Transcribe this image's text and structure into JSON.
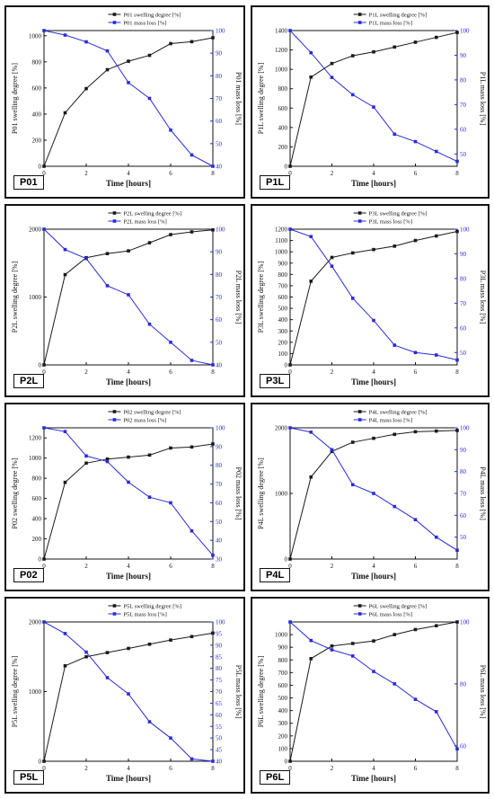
{
  "chart_data": [
    {
      "type": "line",
      "panel_label": "P01",
      "xlabel": "Time [hours]",
      "ylabel_left": "P01 swelling degree [%]",
      "ylabel_right": "P01 mass loss [%]",
      "x": [
        0,
        1,
        2,
        3,
        4,
        5,
        6,
        7,
        8
      ],
      "xlim": [
        0,
        8
      ],
      "xticks": [
        0,
        2,
        4,
        6,
        8
      ],
      "ylim_left": [
        0,
        1040
      ],
      "yticks_left": [
        0,
        200,
        400,
        600,
        800,
        1000
      ],
      "ylim_right": [
        40,
        100
      ],
      "yticks_right": [
        40,
        50,
        60,
        70,
        80,
        90,
        100
      ],
      "legend_position": "top-center",
      "series": [
        {
          "name": "P01 swelling degree [%]",
          "axis": "left",
          "color": "#1a1a1a",
          "marker": "square",
          "values": [
            0,
            410,
            595,
            740,
            805,
            850,
            940,
            955,
            985
          ]
        },
        {
          "name": "P01 mass loss [%]",
          "axis": "right",
          "color": "#2b2bd9",
          "marker": "square",
          "values": [
            100,
            98,
            95,
            91,
            77,
            70,
            56,
            45,
            40
          ]
        }
      ]
    },
    {
      "type": "line",
      "panel_label": "P1L",
      "xlabel": "Time [hours]",
      "ylabel_left": "P1L swelling degree [%]",
      "ylabel_right": "P1L mass loss [%]",
      "x": [
        0,
        1,
        2,
        3,
        4,
        5,
        6,
        7,
        8
      ],
      "xlim": [
        0,
        8
      ],
      "xticks": [
        0,
        2,
        4,
        6,
        8
      ],
      "ylim_left": [
        0,
        1400
      ],
      "yticks_left": [
        0,
        200,
        400,
        600,
        800,
        1000,
        1200,
        1400
      ],
      "ylim_right": [
        45,
        100
      ],
      "yticks_right": [
        50,
        60,
        70,
        80,
        90,
        100
      ],
      "legend_position": "top-center",
      "series": [
        {
          "name": "P1L swelling degree [%]",
          "axis": "left",
          "color": "#1a1a1a",
          "marker": "square",
          "values": [
            0,
            920,
            1060,
            1140,
            1180,
            1230,
            1280,
            1330,
            1380
          ]
        },
        {
          "name": "P1L mass loss [%]",
          "axis": "right",
          "color": "#2b2bd9",
          "marker": "square",
          "values": [
            100,
            91,
            81,
            74,
            69,
            58,
            55,
            51,
            47
          ]
        }
      ]
    },
    {
      "type": "line",
      "panel_label": "P2L",
      "xlabel": "Time [hours]",
      "ylabel_left": "P2L swelling degree [%]",
      "ylabel_right": "P2L mass loss [%]",
      "x": [
        0,
        1,
        2,
        3,
        4,
        5,
        6,
        7,
        8
      ],
      "xlim": [
        0,
        8
      ],
      "xticks": [
        0,
        2,
        4,
        6,
        8
      ],
      "ylim_left": [
        0,
        2000
      ],
      "yticks_left": [
        0,
        1000,
        2000
      ],
      "ylim_right": [
        40,
        100
      ],
      "yticks_right": [
        40,
        50,
        60,
        70,
        80,
        90,
        100
      ],
      "legend_position": "top-center",
      "series": [
        {
          "name": "P2L swelling degree [%]",
          "axis": "left",
          "color": "#1a1a1a",
          "marker": "square",
          "values": [
            0,
            1330,
            1580,
            1640,
            1680,
            1800,
            1920,
            1960,
            1990
          ]
        },
        {
          "name": "P2L mass loss [%]",
          "axis": "right",
          "color": "#2b2bd9",
          "marker": "square",
          "values": [
            100,
            91,
            87,
            75,
            71,
            58,
            50,
            42,
            40
          ]
        }
      ]
    },
    {
      "type": "line",
      "panel_label": "P3L",
      "xlabel": "Time [hours]",
      "ylabel_left": "P3L swelling degree [%]",
      "ylabel_right": "P3L mass loss [%]",
      "x": [
        0,
        1,
        2,
        3,
        4,
        5,
        6,
        7,
        8
      ],
      "xlim": [
        0,
        8
      ],
      "xticks": [
        0,
        2,
        4,
        6,
        8
      ],
      "ylim_left": [
        0,
        1200
      ],
      "yticks_left": [
        0,
        100,
        200,
        300,
        400,
        500,
        600,
        700,
        800,
        900,
        1000,
        1100,
        1200
      ],
      "ylim_right": [
        45,
        100
      ],
      "yticks_right": [
        50,
        60,
        70,
        80,
        90,
        100
      ],
      "legend_position": "top-center",
      "series": [
        {
          "name": "P3L swelling degree [%]",
          "axis": "left",
          "color": "#1a1a1a",
          "marker": "square",
          "values": [
            0,
            740,
            950,
            990,
            1020,
            1050,
            1100,
            1140,
            1180
          ]
        },
        {
          "name": "P3L mass loss [%]",
          "axis": "right",
          "color": "#2b2bd9",
          "marker": "square",
          "values": [
            100,
            97,
            85,
            72,
            63,
            53,
            50,
            49,
            47
          ]
        }
      ]
    },
    {
      "type": "line",
      "panel_label": "P02",
      "xlabel": "Time [hours]",
      "ylabel_left": "P02 swelling degree [%]",
      "ylabel_right": "P02 mass loss [%]",
      "x": [
        0,
        1,
        2,
        3,
        4,
        5,
        6,
        7,
        8
      ],
      "xlim": [
        0,
        8
      ],
      "xticks": [
        0,
        2,
        4,
        6,
        8
      ],
      "ylim_left": [
        0,
        1300
      ],
      "yticks_left": [
        0,
        200,
        400,
        600,
        800,
        1000,
        1200
      ],
      "ylim_right": [
        30,
        100
      ],
      "yticks_right": [
        30,
        40,
        50,
        60,
        70,
        80,
        90,
        100
      ],
      "legend_position": "top-center",
      "series": [
        {
          "name": "P02 swelling degree [%]",
          "axis": "left",
          "color": "#1a1a1a",
          "marker": "square",
          "values": [
            0,
            760,
            950,
            990,
            1010,
            1030,
            1100,
            1110,
            1140
          ]
        },
        {
          "name": "P02 mass loss [%]",
          "axis": "right",
          "color": "#2b2bd9",
          "marker": "square",
          "values": [
            100,
            98,
            85,
            82,
            71,
            63,
            60,
            45,
            32
          ]
        }
      ]
    },
    {
      "type": "line",
      "panel_label": "P4L",
      "xlabel": "Time [hours]",
      "ylabel_left": "P4L swelling degree [%]",
      "ylabel_right": "P4L mass loss [%]",
      "x": [
        0,
        1,
        2,
        3,
        4,
        5,
        6,
        7,
        8
      ],
      "xlim": [
        0,
        8
      ],
      "xticks": [
        0,
        2,
        4,
        6,
        8
      ],
      "ylim_left": [
        0,
        2000
      ],
      "yticks_left": [
        0,
        1000,
        2000
      ],
      "ylim_right": [
        40,
        100
      ],
      "yticks_right": [
        50,
        60,
        70,
        80,
        90,
        100
      ],
      "legend_position": "top-center",
      "series": [
        {
          "name": "P4L swelling degree [%]",
          "axis": "left",
          "color": "#1a1a1a",
          "marker": "square",
          "values": [
            0,
            1250,
            1640,
            1780,
            1840,
            1900,
            1940,
            1950,
            1960
          ]
        },
        {
          "name": "P4L mass loss [%]",
          "axis": "right",
          "color": "#2b2bd9",
          "marker": "square",
          "values": [
            100,
            98,
            90,
            74,
            70,
            64,
            58,
            50,
            44
          ]
        }
      ]
    },
    {
      "type": "line",
      "panel_label": "P5L",
      "xlabel": "Time [hours]",
      "ylabel_left": "P5L swelling degree [%]",
      "ylabel_right": "P5L mass loss [%]",
      "x": [
        0,
        1,
        2,
        3,
        4,
        5,
        6,
        7,
        8
      ],
      "xlim": [
        0,
        8
      ],
      "xticks": [
        0,
        2,
        4,
        6,
        8
      ],
      "ylim_left": [
        0,
        2000
      ],
      "yticks_left": [
        0,
        1000,
        2000
      ],
      "ylim_right": [
        40,
        100
      ],
      "yticks_right": [
        40,
        45,
        50,
        55,
        60,
        65,
        70,
        75,
        80,
        85,
        90,
        95,
        100
      ],
      "legend_position": "top-center",
      "series": [
        {
          "name": "P5L swelling degree [%]",
          "axis": "left",
          "color": "#1a1a1a",
          "marker": "square",
          "values": [
            0,
            1370,
            1500,
            1560,
            1620,
            1680,
            1740,
            1790,
            1840
          ]
        },
        {
          "name": "P5L mass loss [%]",
          "axis": "right",
          "color": "#2b2bd9",
          "marker": "square",
          "values": [
            100,
            95,
            87,
            76,
            69,
            57,
            50,
            41,
            40
          ]
        }
      ]
    },
    {
      "type": "line",
      "panel_label": "P6L",
      "xlabel": "Time [hours]",
      "ylabel_left": "P6L swelling degree [%]",
      "ylabel_right": "P6L mass loss [%]",
      "x": [
        0,
        1,
        2,
        3,
        4,
        5,
        6,
        7,
        8
      ],
      "xlim": [
        0,
        8
      ],
      "xticks": [
        0,
        2,
        4,
        6,
        8
      ],
      "ylim_left": [
        0,
        1100
      ],
      "yticks_left": [
        0,
        100,
        200,
        300,
        400,
        500,
        600,
        700,
        800,
        900,
        1000
      ],
      "ylim_right": [
        55,
        100
      ],
      "yticks_right": [
        60,
        80,
        100
      ],
      "legend_position": "top-center",
      "series": [
        {
          "name": "P6L swelling degree [%]",
          "axis": "left",
          "color": "#1a1a1a",
          "marker": "square",
          "values": [
            0,
            810,
            910,
            930,
            950,
            1000,
            1040,
            1070,
            1100
          ]
        },
        {
          "name": "P6L mass loss [%]",
          "axis": "right",
          "color": "#2b2bd9",
          "marker": "square",
          "values": [
            100,
            94,
            91,
            89,
            84,
            80,
            75,
            71,
            59
          ]
        }
      ]
    }
  ]
}
